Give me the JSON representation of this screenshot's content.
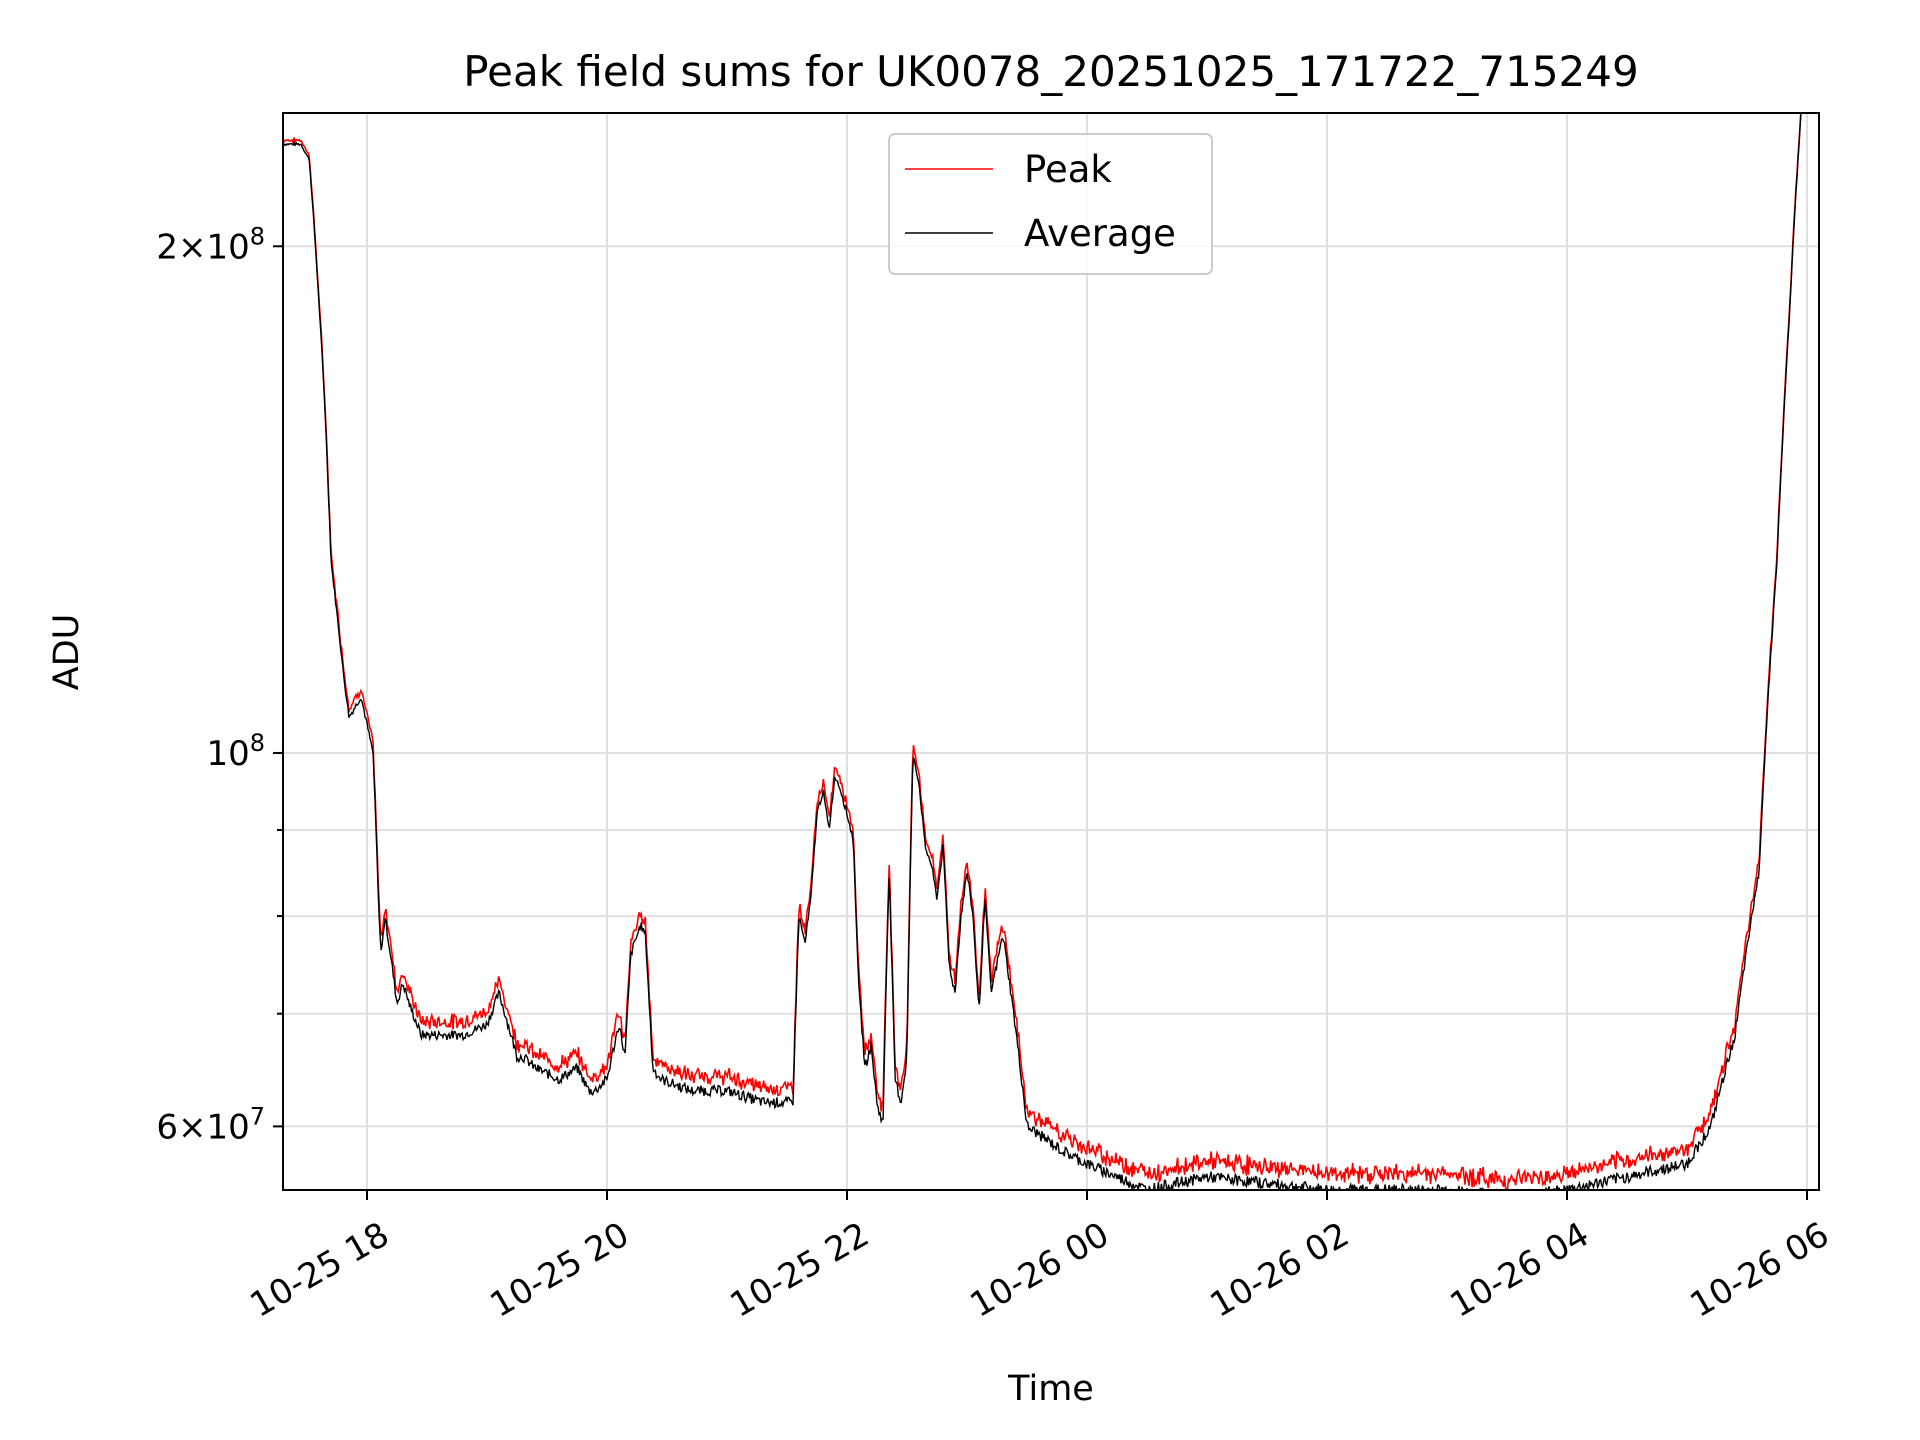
{
  "chart_data": {
    "type": "line",
    "title": "Peak field sums for UK0078_20251025_171722_715249",
    "xlabel": "Time",
    "ylabel": "ADU",
    "yscale": "log",
    "ylim": [
      55000000,
      240000000
    ],
    "xlim_hours": [
      -0.7,
      12.1
    ],
    "x_unit": "hours since 2025-10-25 18:00",
    "grid": true,
    "legend_position": "top-center",
    "x_ticks": [
      {
        "hour": 0,
        "label": "10-25 18"
      },
      {
        "hour": 2,
        "label": "10-25 20"
      },
      {
        "hour": 4,
        "label": "10-25 22"
      },
      {
        "hour": 6,
        "label": "10-26 00"
      },
      {
        "hour": 8,
        "label": "10-26 02"
      },
      {
        "hour": 10,
        "label": "10-26 04"
      },
      {
        "hour": 12,
        "label": "10-26 06"
      }
    ],
    "y_major_ticks": [
      {
        "value": 200000000,
        "mant": "2×10",
        "exp": "8"
      },
      {
        "value": 100000000,
        "mant": "10",
        "exp": "8"
      },
      {
        "value": 60000000,
        "mant": "6×10",
        "exp": "7"
      }
    ],
    "y_minor_ticks": [
      70000000,
      80000000,
      90000000
    ],
    "series": [
      {
        "name": "Peak",
        "color": "#ff0000",
        "offset_mdu": 0.8
      },
      {
        "name": "Average",
        "color": "#000000",
        "offset_mdu": 0
      }
    ],
    "x_hours": [
      -0.7,
      -0.55,
      -0.48,
      -0.42,
      -0.35,
      -0.3,
      -0.2,
      -0.15,
      -0.05,
      0.0,
      0.05,
      0.1,
      0.12,
      0.15,
      0.25,
      0.3,
      0.35,
      0.45,
      0.5,
      0.6,
      0.8,
      1.0,
      1.1,
      1.2,
      1.25,
      1.3,
      1.4,
      1.6,
      1.75,
      1.85,
      1.9,
      2.0,
      2.1,
      2.15,
      2.2,
      2.28,
      2.32,
      2.38,
      2.45,
      2.7,
      3.0,
      3.3,
      3.5,
      3.55,
      3.6,
      3.65,
      3.7,
      3.75,
      3.8,
      3.85,
      3.9,
      3.95,
      4.0,
      4.05,
      4.1,
      4.15,
      4.2,
      4.25,
      4.3,
      4.35,
      4.4,
      4.45,
      4.5,
      4.55,
      4.6,
      4.65,
      4.7,
      4.75,
      4.8,
      4.85,
      4.9,
      4.95,
      5.0,
      5.05,
      5.1,
      5.15,
      5.2,
      5.3,
      5.5,
      5.8,
      6.0,
      6.5,
      7.0,
      7.5,
      8.0,
      9.0,
      9.5,
      10.0,
      10.5,
      11.0,
      11.2,
      11.4,
      11.6,
      11.75,
      11.85,
      11.95
    ],
    "average_mdu": [
      230,
      230,
      225,
      195,
      160,
      130,
      112,
      105,
      108,
      104,
      100,
      80,
      76,
      80,
      71,
      73,
      71,
      68,
      68,
      68,
      68,
      69,
      72,
      68,
      66,
      66,
      65,
      64,
      65,
      63,
      63,
      64,
      69,
      66,
      76,
      79,
      78,
      65,
      64,
      63,
      63,
      62,
      62,
      62,
      80,
      77,
      82,
      92,
      95,
      90,
      97,
      95,
      92,
      89,
      72,
      65,
      67,
      62,
      60,
      85,
      64,
      62,
      66,
      100,
      96,
      88,
      86,
      82,
      88,
      75,
      72,
      80,
      85,
      80,
      70,
      82,
      72,
      78,
      60,
      58,
      57,
      55,
      56,
      55.5,
      55,
      55,
      54.5,
      55,
      56,
      57,
      60,
      68,
      85,
      130,
      180,
      240
    ]
  },
  "legend": {
    "items": [
      {
        "label": "Peak",
        "color": "#ff0000"
      },
      {
        "label": "Average",
        "color": "#000000"
      }
    ]
  }
}
